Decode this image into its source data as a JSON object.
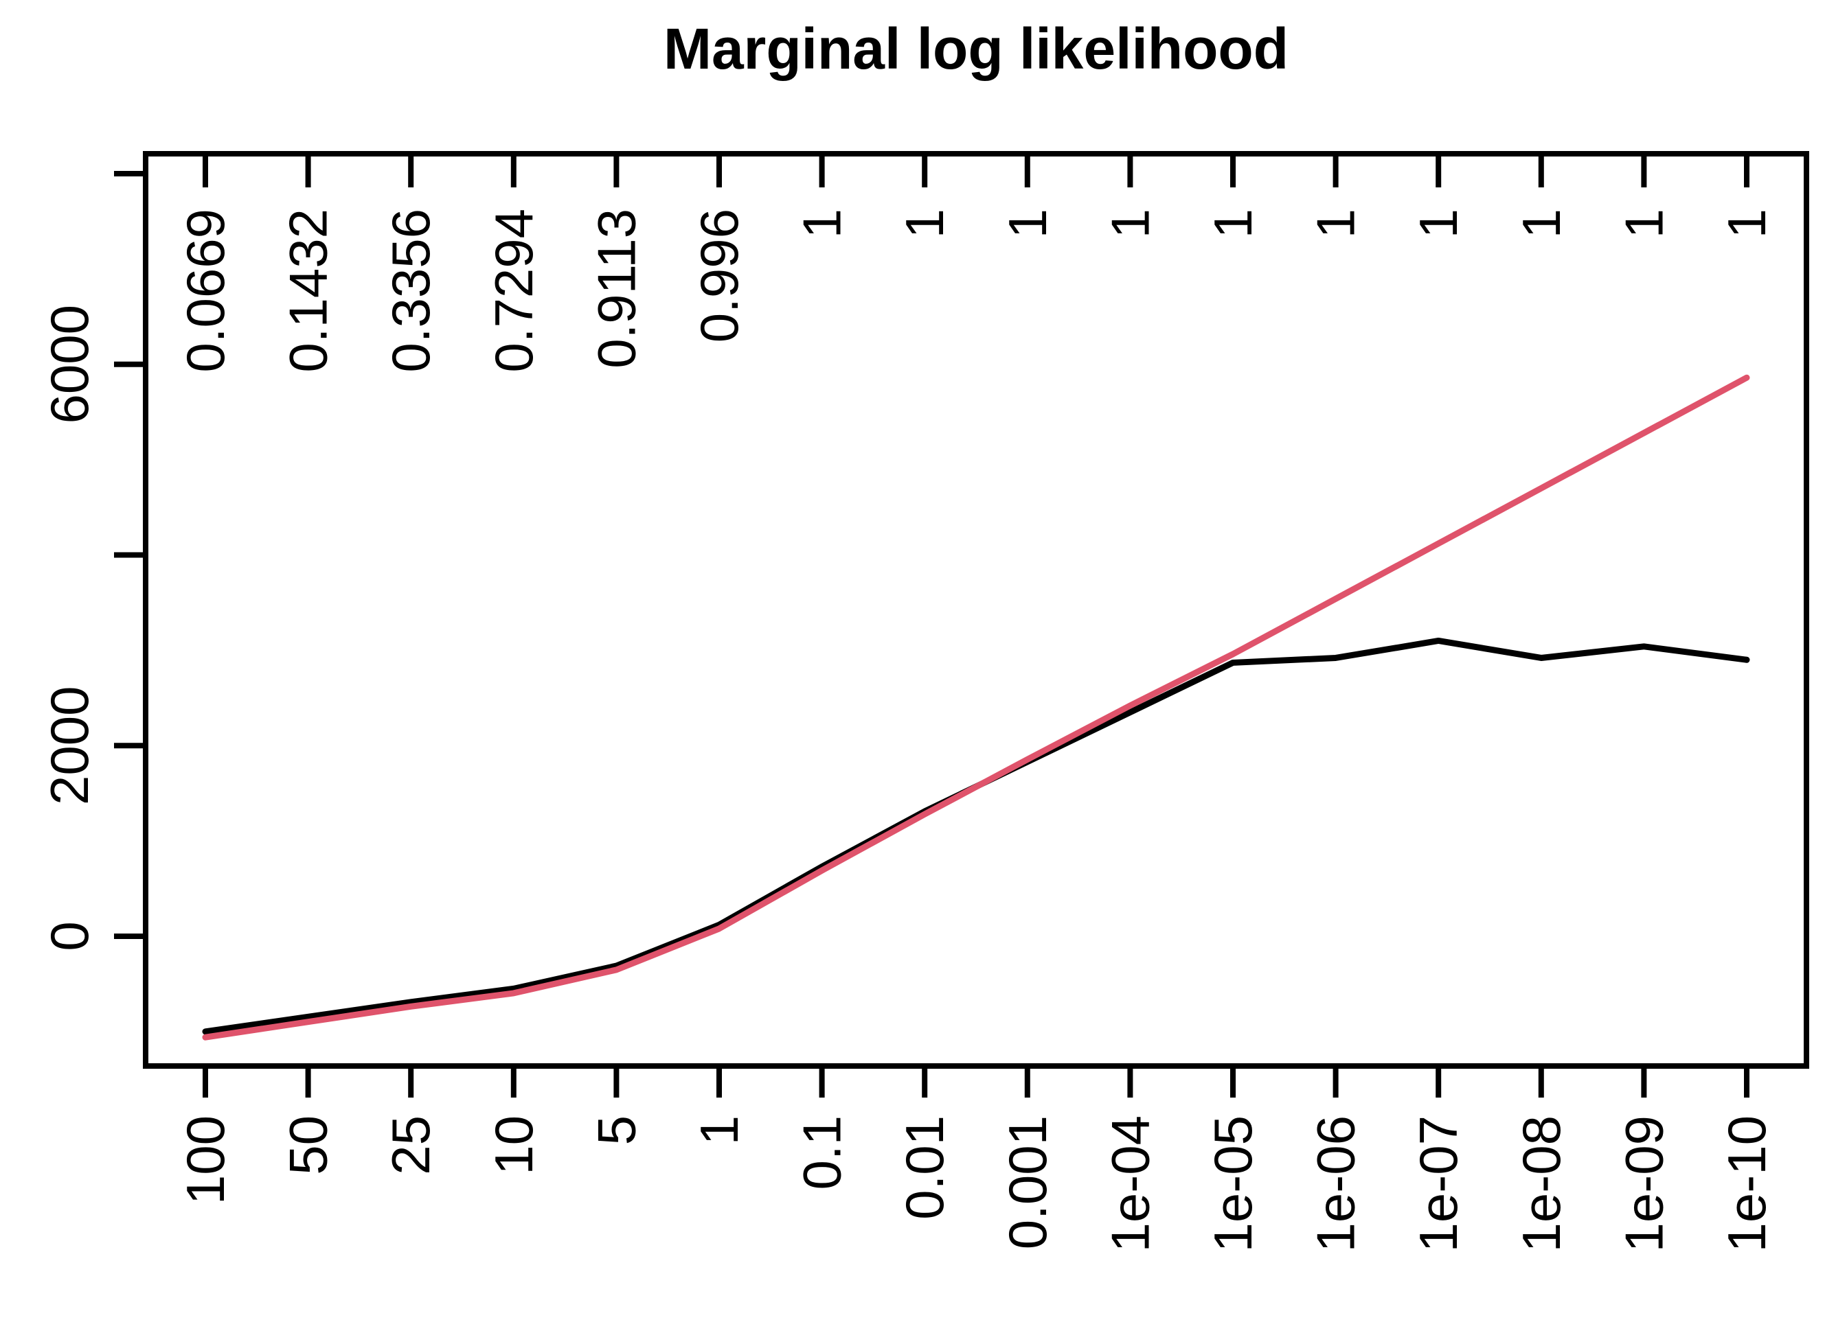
{
  "chart_data": {
    "type": "line",
    "title": "Marginal log likelihood",
    "x_axis": {
      "bottom_tick_labels": [
        "100",
        "50",
        "25",
        "10",
        "5",
        "1",
        "0.1",
        "0.01",
        "0.001",
        "1e-04",
        "1e-05",
        "1e-06",
        "1e-07",
        "1e-08",
        "1e-09",
        "1e-10"
      ],
      "top_tick_labels": [
        "0.0669",
        "0.1432",
        "0.3356",
        "0.7294",
        "0.9113",
        "0.996",
        "1",
        "1",
        "1",
        "1",
        "1",
        "1",
        "1",
        "1",
        "1",
        "1"
      ],
      "ticks_equally_spaced": true
    },
    "y_axis": {
      "tick_values": [
        0,
        2000,
        4000,
        6000,
        8000
      ],
      "tick_labels": [
        "0",
        "2000",
        "",
        "6000",
        ""
      ],
      "ylim": [
        -1361,
        8209
      ]
    },
    "series": [
      {
        "name": "black-line",
        "color": "#000000",
        "values": [
          -1000,
          -845,
          -690,
          -550,
          -310,
          120,
          730,
          1310,
          1830,
          2350,
          2870,
          2920,
          3100,
          2920,
          3040,
          2900
        ]
      },
      {
        "name": "red-line",
        "color": "#DF536B",
        "values": [
          -1060,
          -898,
          -737,
          -597,
          -352,
          80,
          690,
          1280,
          1855,
          2420,
          2960,
          3540,
          4120,
          4700,
          5280,
          5860
        ]
      }
    ],
    "legend": "none",
    "background_color": "#ffffff"
  }
}
